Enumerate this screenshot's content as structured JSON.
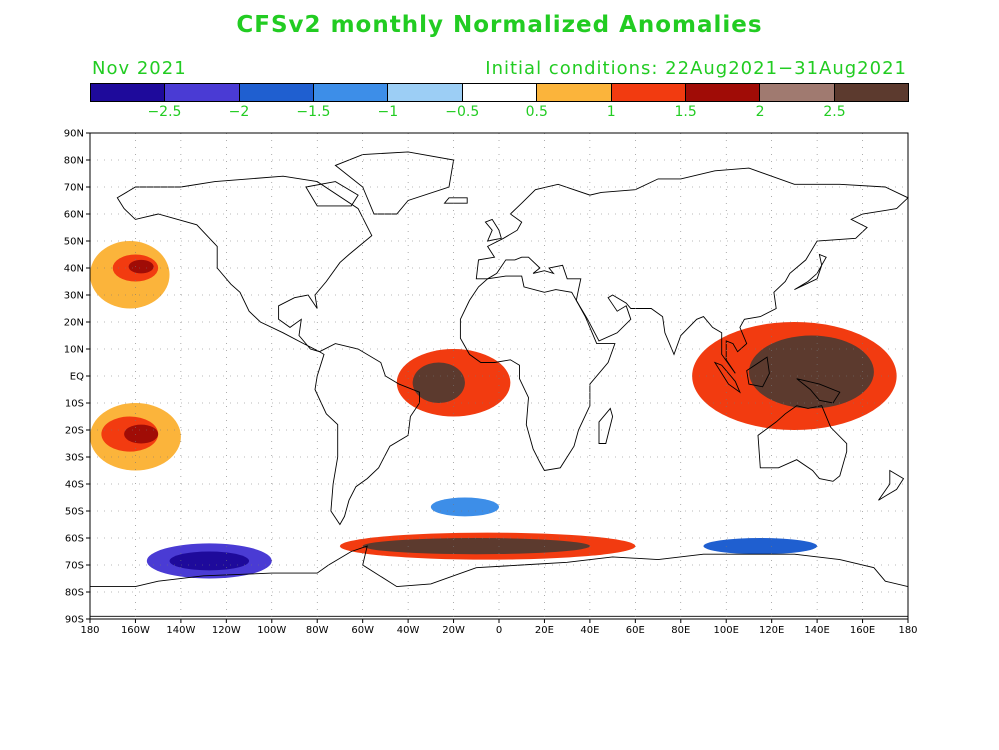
{
  "header": {
    "title": "CFSv2 monthly Normalized Anomalies",
    "month": "Nov 2021",
    "initial_conditions": "Initial conditions: 22Aug2021−31Aug2021"
  },
  "colorbar": {
    "colors": [
      "#1e0a9b",
      "#4a3bd4",
      "#1f5fd0",
      "#3d8ee8",
      "#9ccef5",
      "#ffffff",
      "#fbb43b",
      "#f23b10",
      "#a00c06",
      "#a07a70",
      "#5c3a2e"
    ],
    "labels": [
      "−2.5",
      "−2",
      "−1.5",
      "−1",
      "−0.5",
      "0.5",
      "1",
      "1.5",
      "2",
      "2.5"
    ]
  },
  "axes": {
    "lat_labels": [
      "90N",
      "80N",
      "70N",
      "60N",
      "50N",
      "40N",
      "30N",
      "20N",
      "10N",
      "EQ",
      "10S",
      "20S",
      "30S",
      "40S",
      "50S",
      "60S",
      "70S",
      "80S",
      "90S"
    ],
    "lon_labels": [
      "180",
      "160W",
      "140W",
      "120W",
      "100W",
      "80W",
      "60W",
      "40W",
      "20W",
      "0",
      "20E",
      "40E",
      "60E",
      "80E",
      "100E",
      "120E",
      "140E",
      "160E",
      "180"
    ]
  },
  "anomaly_regions": [
    {
      "name": "north-pacific-warm",
      "level": "#fbb43b",
      "lon": [
        -180,
        -145
      ],
      "lat": [
        25,
        50
      ]
    },
    {
      "name": "north-pacific-core",
      "level": "#f23b10",
      "lon": [
        -170,
        -150
      ],
      "lat": [
        35,
        45
      ]
    },
    {
      "name": "north-pacific-peak",
      "level": "#a00c06",
      "lon": [
        -163,
        -152
      ],
      "lat": [
        38,
        43
      ]
    },
    {
      "name": "south-pacific-warm",
      "level": "#fbb43b",
      "lon": [
        -180,
        -140
      ],
      "lat": [
        -35,
        -10
      ]
    },
    {
      "name": "south-pacific-core",
      "level": "#f23b10",
      "lon": [
        -175,
        -150
      ],
      "lat": [
        -28,
        -15
      ]
    },
    {
      "name": "south-pacific-peak",
      "level": "#a00c06",
      "lon": [
        -165,
        -150
      ],
      "lat": [
        -25,
        -18
      ]
    },
    {
      "name": "tropical-atlantic-warm",
      "level": "#f23b10",
      "lon": [
        -45,
        5
      ],
      "lat": [
        -15,
        10
      ]
    },
    {
      "name": "tropical-atlantic-peak",
      "level": "#5c3a2e",
      "lon": [
        -38,
        -15
      ],
      "lat": [
        -10,
        5
      ]
    },
    {
      "name": "maritime-continent-warm",
      "level": "#f23b10",
      "lon": [
        85,
        175
      ],
      "lat": [
        -20,
        20
      ]
    },
    {
      "name": "maritime-continent-peak",
      "level": "#5c3a2e",
      "lon": [
        110,
        165
      ],
      "lat": [
        -12,
        15
      ]
    },
    {
      "name": "southern-ocean-warm",
      "level": "#f23b10",
      "lon": [
        -70,
        60
      ],
      "lat": [
        -68,
        -58
      ]
    },
    {
      "name": "southern-ocean-peak",
      "level": "#5c3a2e",
      "lon": [
        -60,
        40
      ],
      "lat": [
        -66,
        -60
      ]
    },
    {
      "name": "amundsen-cold",
      "level": "#4a3bd4",
      "lon": [
        -155,
        -100
      ],
      "lat": [
        -75,
        -62
      ]
    },
    {
      "name": "amundsen-cold-core",
      "level": "#1e0a9b",
      "lon": [
        -145,
        -110
      ],
      "lat": [
        -72,
        -65
      ]
    },
    {
      "name": "east-antarctic-cold",
      "level": "#1f5fd0",
      "lon": [
        90,
        140
      ],
      "lat": [
        -66,
        -60
      ]
    },
    {
      "name": "south-atlantic-cold",
      "level": "#3d8ee8",
      "lon": [
        -30,
        0
      ],
      "lat": [
        -52,
        -45
      ]
    }
  ]
}
